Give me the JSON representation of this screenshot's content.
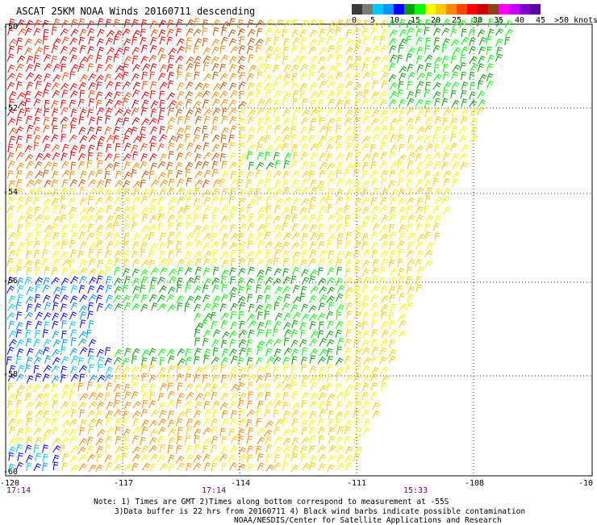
{
  "title": "ASCAT 25KM NOAA Winds 20160711 descending",
  "scale": {
    "labels": [
      "0",
      "5",
      "10",
      "15",
      "20",
      "25",
      "30",
      "35",
      "40",
      "45",
      ">50 knots"
    ],
    "colors": [
      "#3a3a3a",
      "#7a7a7a",
      "#00c8ff",
      "#0096ff",
      "#0000ff",
      "#00a000",
      "#00ff00",
      "#f8f800",
      "#ffc800",
      "#ff8800",
      "#ff4400",
      "#ff0000",
      "#c80000",
      "#8b4513",
      "#ff00ff",
      "#c800ff",
      "#8000c8",
      "#5a00a0"
    ]
  },
  "map": {
    "lat_labels": [
      "-50",
      "-52",
      "-54",
      "-56",
      "-58",
      "-60"
    ],
    "lon_labels": [
      "-120",
      "-117",
      "-114",
      "-111",
      "-108",
      "-10"
    ],
    "time_labels": [
      "17:14",
      "17:14",
      "15:33"
    ],
    "lat_range": [
      -60,
      -50
    ],
    "lon_range": [
      -120,
      -105
    ]
  },
  "notes": {
    "line1": "Note: 1) Times are GMT 2)Times along bottom correspond to measurement at -55S",
    "line2": "3)Data buffer is 22 hrs from 20160711 4) Black wind barbs indicate possible contamination",
    "line3": "NOAA/NESDIS/Center for Satellite Applications and Research"
  }
}
